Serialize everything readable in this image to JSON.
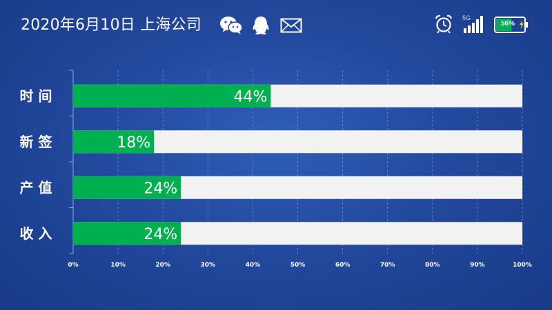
{
  "header": {
    "date_title": "2020年6月10日 上海公司",
    "icons": [
      "wechat-icon",
      "qq-icon",
      "mail-icon"
    ]
  },
  "status": {
    "network": "5G",
    "battery": "56%",
    "battery_level": 56,
    "battery_color": "#00b050"
  },
  "colors": {
    "bar_fill": "#00b050",
    "bar_track": "#f2f2f2"
  },
  "chart_data": {
    "type": "bar",
    "orientation": "horizontal",
    "categories": [
      "时间",
      "新签",
      "产值",
      "收入"
    ],
    "values": [
      44,
      18,
      24,
      24
    ],
    "value_labels": [
      "44%",
      "18%",
      "24%",
      "24%"
    ],
    "xlim": [
      0,
      100
    ],
    "xticks": [
      "0%",
      "10%",
      "20%",
      "30%",
      "40%",
      "50%",
      "60%",
      "70%",
      "80%",
      "90%",
      "100%"
    ],
    "grid": true,
    "title": "",
    "xlabel": "",
    "ylabel": ""
  }
}
